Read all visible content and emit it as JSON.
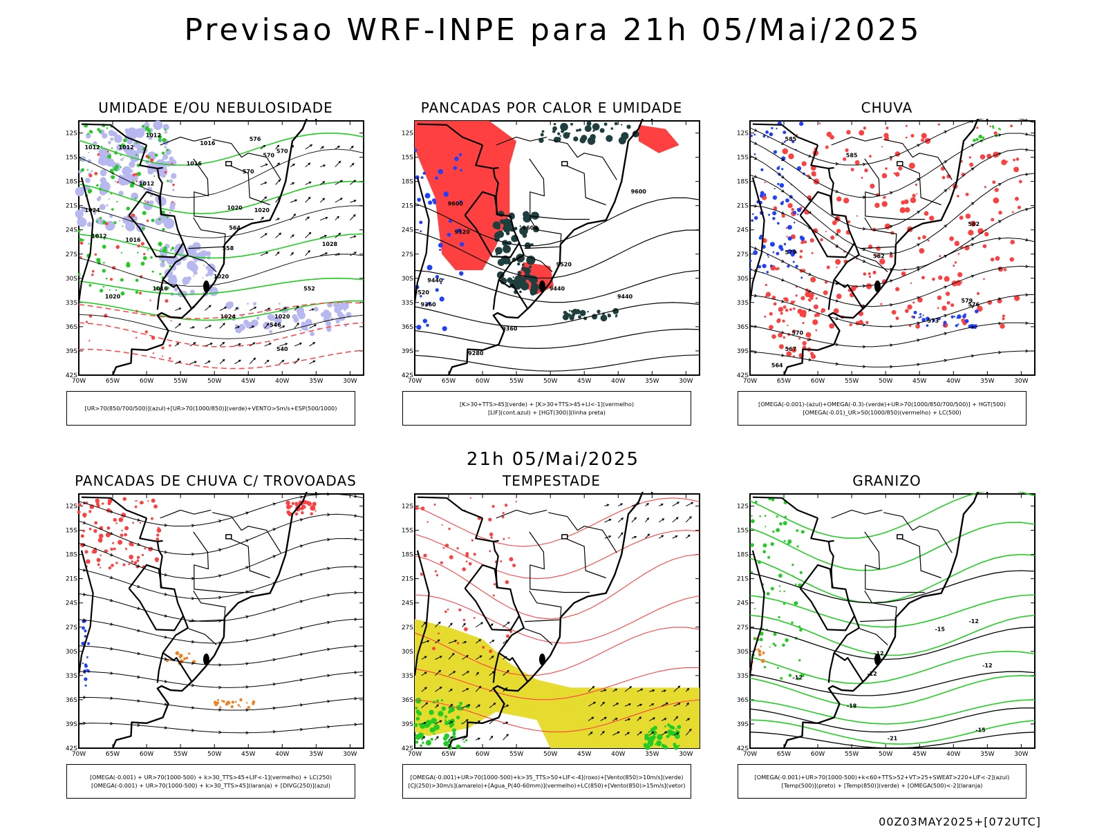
{
  "title": "Previsao WRF-INPE  para 21h 05/Mai/2025",
  "subtitle": "21h 05/Mai/2025",
  "footer": "00Z03MAY2025+[072UTC]",
  "axes": {
    "lat_labels": [
      "12S",
      "15S",
      "18S",
      "21S",
      "24S",
      "27S",
      "30S",
      "33S",
      "36S",
      "39S",
      "42S"
    ],
    "lon_labels": [
      "70W",
      "65W",
      "60W",
      "55W",
      "50W",
      "45W",
      "40W",
      "35W",
      "30W"
    ]
  },
  "colors": {
    "green": "#22cc22",
    "red": "#ff4040",
    "blue": "#2040ff",
    "lavender": "#b8b8f0",
    "darkteal": "#1f3f3f",
    "yellow": "#e6dc30",
    "orange": "#f08020",
    "black": "#000000"
  },
  "panels": [
    {
      "id": "umidade",
      "title": "UMIDADE E/OU NEBULOSIDADE",
      "legend": [
        "[UR>70(850/700/500)](azul)+[UR>70(1000/850)](verde)+VENTO>5m/s+ESP(500/1000)"
      ],
      "labels": [
        "1012",
        "1012",
        "1012",
        "1016",
        "1016",
        "1012",
        "1020",
        "1020",
        "1024",
        "1012",
        "1016",
        "1020",
        "1016",
        "1020",
        "1024",
        "1020",
        "1028",
        "570",
        "570",
        "564",
        "558",
        "552",
        "546",
        "540",
        "576",
        "570"
      ]
    },
    {
      "id": "pancadas-calor",
      "title": "PANCADAS POR CALOR E UMIDADE",
      "legend": [
        "[K>30+TTS>45](verde) + [K>30+TTS>45+LI<-1](vermelho)",
        "[LIF](cont.azul) + [HGT(300)](linha preta)"
      ],
      "labels": [
        "9600",
        "9600",
        "9600",
        "9520",
        "9520",
        "9520",
        "9440",
        "9440",
        "9440",
        "9360",
        "9280",
        "9360"
      ]
    },
    {
      "id": "chuva",
      "title": "CHUVA",
      "legend": [
        "[OMEGA(-0.001)-(azul)+OMEGA(-0.3)-(verde)+UR>70(1000/850/700/500)] + HGT(500)",
        "[OMEGA(-0.01)_UR>50(1000/850)(vermelho) + LC(500)"
      ],
      "labels": [
        "585",
        "585",
        "582",
        "582",
        "579",
        "579",
        "576",
        "573",
        "570",
        "567",
        "564"
      ]
    },
    {
      "id": "pancadas-trovoadas",
      "title": "PANCADAS DE CHUVA C/ TROVOADAS",
      "legend": [
        "[OMEGA(-0.001) + UR>70(1000-500) + k>30_TTS>45+LIF<-1](vermelho) + LC(250)",
        "[OMEGA(-0.001) + UR>70(1000-500) + k>30_TTS>45](laranja) + [DIVG(250)](azul)"
      ],
      "labels": []
    },
    {
      "id": "tempestade",
      "title": "TEMPESTADE",
      "legend": [
        "[OMEGA(-0.001)+UR>70(1000-500)+k>35_TTS>50+LIF<-4](roxo)+[Vento(850)>10m/s](verde)",
        "[CJ(250)>30m/s](amarelo)+[Agua_P(40-60mm)](vermelho)+LC(850)+[Vento(850)>15m/s](vetor)"
      ],
      "labels": []
    },
    {
      "id": "granizo",
      "title": "GRANIZO",
      "legend": [
        "[OMEGA(-0.001)+UR>70(1000-500)+k<60+TTS>52+VT>25+SWEAT>220+LIF<-2](azul)",
        "[Temp(500)](preto) + [Temp(850)](verde) + [OMEGA(500)<-2](laranja)"
      ],
      "labels": [
        "-12",
        "-12",
        "-12",
        "-12",
        "-12",
        "-15",
        "-18",
        "-21",
        "-15"
      ]
    }
  ]
}
